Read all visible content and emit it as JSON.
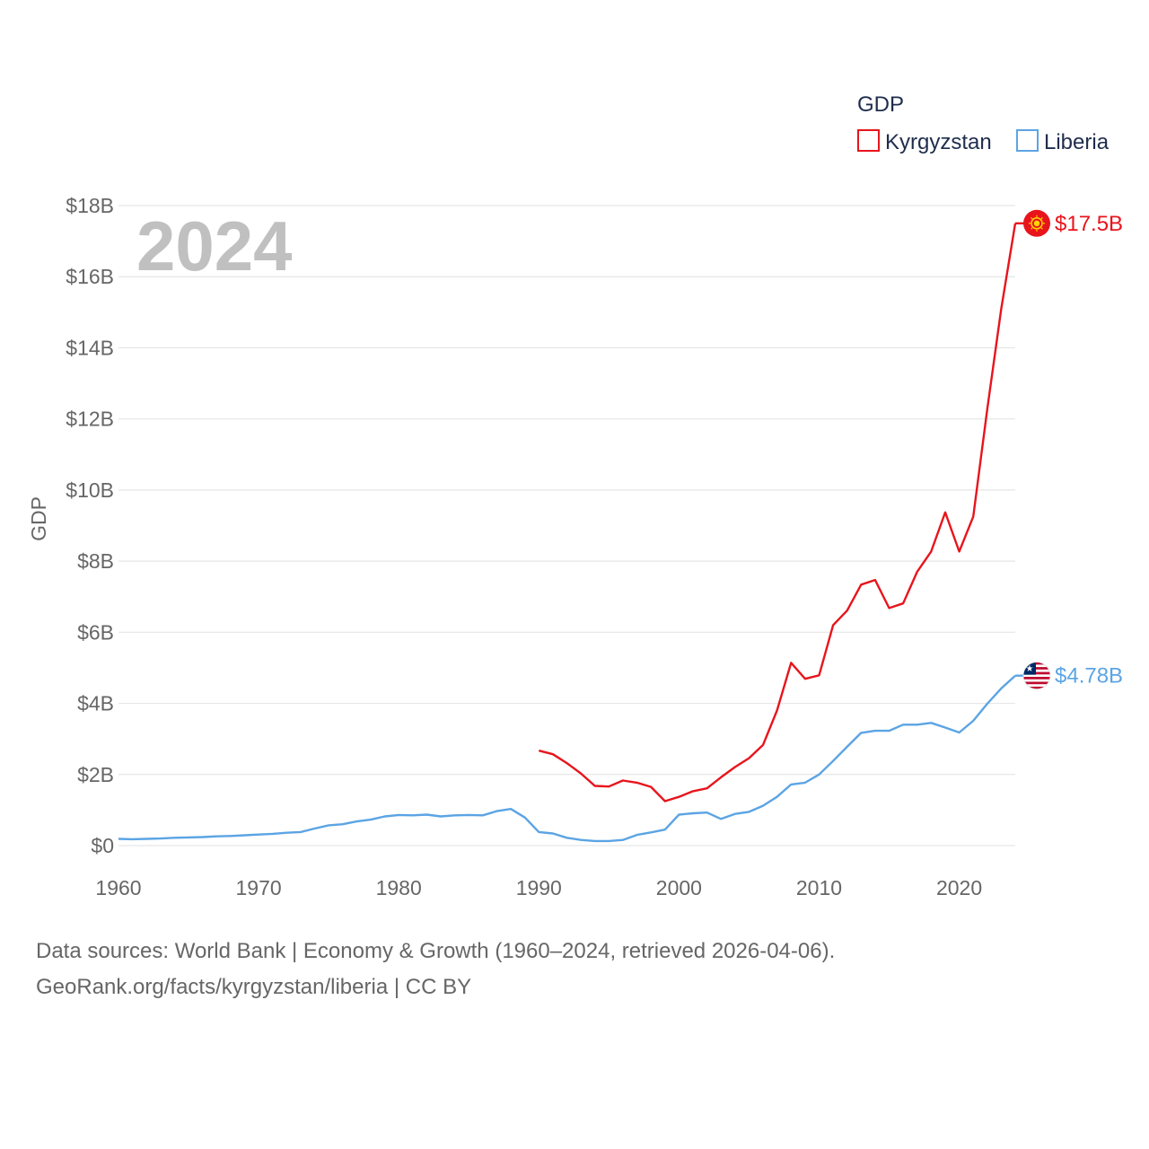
{
  "chart_data": {
    "type": "line",
    "year_label": "2024",
    "ylabel": "GDP",
    "ylim": [
      0,
      18
    ],
    "yticks": [
      {
        "value": 0,
        "label": "$0"
      },
      {
        "value": 2,
        "label": "$2B"
      },
      {
        "value": 4,
        "label": "$4B"
      },
      {
        "value": 6,
        "label": "$6B"
      },
      {
        "value": 8,
        "label": "$8B"
      },
      {
        "value": 10,
        "label": "$10B"
      },
      {
        "value": 12,
        "label": "$12B"
      },
      {
        "value": 14,
        "label": "$14B"
      },
      {
        "value": 16,
        "label": "$16B"
      },
      {
        "value": 18,
        "label": "$18B"
      }
    ],
    "xlim": [
      1960,
      2024
    ],
    "xticks": [
      {
        "value": 1960,
        "label": "1960"
      },
      {
        "value": 1970,
        "label": "1970"
      },
      {
        "value": 1980,
        "label": "1980"
      },
      {
        "value": 1990,
        "label": "1990"
      },
      {
        "value": 2000,
        "label": "2000"
      },
      {
        "value": 2010,
        "label": "2010"
      },
      {
        "value": 2020,
        "label": "2020"
      }
    ],
    "legend": {
      "title": "GDP",
      "position": "top-right"
    },
    "series": [
      {
        "name": "Kyrgyzstan",
        "color": "#e8141c",
        "end_label": "$17.5B",
        "flag_icon": "kyrgyzstan-flag-icon",
        "x": [
          1990,
          1991,
          1992,
          1993,
          1994,
          1995,
          1996,
          1997,
          1998,
          1999,
          2000,
          2001,
          2002,
          2003,
          2004,
          2005,
          2006,
          2007,
          2008,
          2009,
          2010,
          2011,
          2012,
          2013,
          2014,
          2015,
          2016,
          2017,
          2018,
          2019,
          2020,
          2021,
          2022,
          2023,
          2024
        ],
        "values": [
          2.67,
          2.57,
          2.32,
          2.03,
          1.68,
          1.66,
          1.83,
          1.77,
          1.65,
          1.25,
          1.37,
          1.53,
          1.61,
          1.92,
          2.21,
          2.46,
          2.83,
          3.8,
          5.14,
          4.69,
          4.79,
          6.2,
          6.61,
          7.34,
          7.47,
          6.68,
          6.81,
          7.7,
          8.27,
          9.37,
          8.27,
          9.25,
          12.27,
          15.1,
          17.5
        ]
      },
      {
        "name": "Liberia",
        "color": "#5ba4e4",
        "end_label": "$4.78B",
        "flag_icon": "liberia-flag-icon",
        "x": [
          1960,
          1961,
          1962,
          1963,
          1964,
          1965,
          1966,
          1967,
          1968,
          1969,
          1970,
          1971,
          1972,
          1973,
          1974,
          1975,
          1976,
          1977,
          1978,
          1979,
          1980,
          1981,
          1982,
          1983,
          1984,
          1985,
          1986,
          1987,
          1988,
          1989,
          1990,
          1991,
          1992,
          1993,
          1994,
          1995,
          1996,
          1997,
          1998,
          1999,
          2000,
          2001,
          2002,
          2003,
          2004,
          2005,
          2006,
          2007,
          2008,
          2009,
          2010,
          2011,
          2012,
          2013,
          2014,
          2015,
          2016,
          2017,
          2018,
          2019,
          2020,
          2021,
          2022,
          2023,
          2024
        ],
        "values": [
          0.19,
          0.18,
          0.19,
          0.2,
          0.22,
          0.23,
          0.24,
          0.26,
          0.27,
          0.29,
          0.31,
          0.33,
          0.36,
          0.38,
          0.48,
          0.57,
          0.6,
          0.68,
          0.73,
          0.82,
          0.86,
          0.85,
          0.87,
          0.82,
          0.85,
          0.86,
          0.85,
          0.97,
          1.03,
          0.79,
          0.38,
          0.34,
          0.22,
          0.16,
          0.13,
          0.13,
          0.16,
          0.3,
          0.37,
          0.45,
          0.87,
          0.91,
          0.93,
          0.75,
          0.89,
          0.95,
          1.12,
          1.37,
          1.72,
          1.77,
          2.0,
          2.38,
          2.78,
          3.17,
          3.23,
          3.23,
          3.4,
          3.4,
          3.45,
          3.32,
          3.18,
          3.51,
          3.99,
          4.42,
          4.78
        ]
      }
    ]
  },
  "footer": {
    "line1": "Data sources: World Bank | Economy & Growth (1960–2024, retrieved 2026-04-06).",
    "line2": "GeoRank.org/facts/kyrgyzstan/liberia | CC BY"
  }
}
